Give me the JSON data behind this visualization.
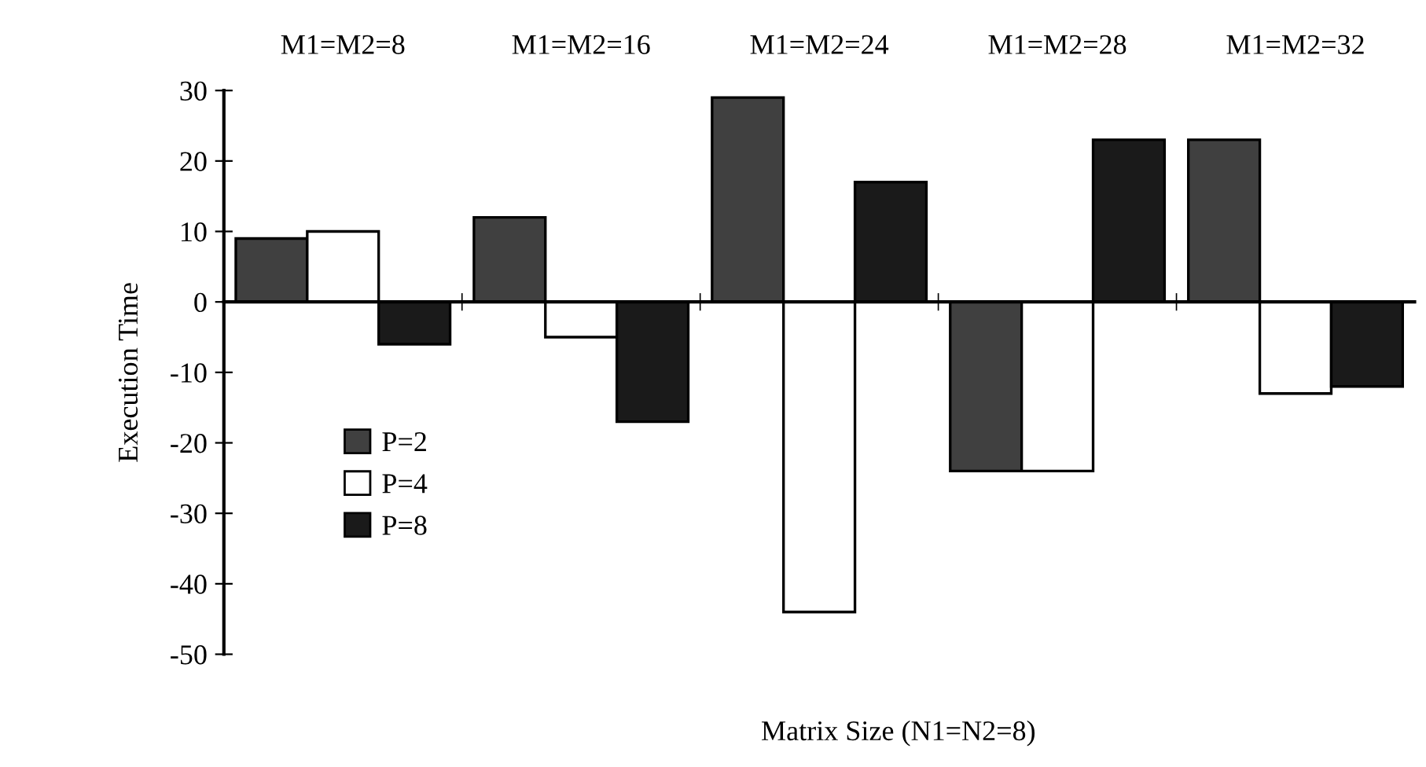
{
  "chart_data": {
    "type": "bar",
    "categories": [
      "M1=M2=8",
      "M1=M2=16",
      "M1=M2=24",
      "M1=M2=28",
      "M1=M2=32"
    ],
    "series": [
      {
        "name": "P=2",
        "color": "#404040",
        "values": [
          9,
          12,
          29,
          -24,
          23
        ]
      },
      {
        "name": "P=4",
        "color": "#ffffff",
        "values": [
          10,
          -5,
          -44,
          -24,
          -13
        ]
      },
      {
        "name": "P=8",
        "color": "#1a1a1a",
        "values": [
          -6,
          -17,
          17,
          23,
          -12
        ]
      }
    ],
    "xlabel": "Matrix Size (N1=N2=8)",
    "ylabel": "Execution Time",
    "ylim": [
      -50,
      30
    ],
    "yticks": [
      -50,
      -40,
      -30,
      -20,
      -10,
      0,
      10,
      20,
      30
    ],
    "legend": "left"
  }
}
